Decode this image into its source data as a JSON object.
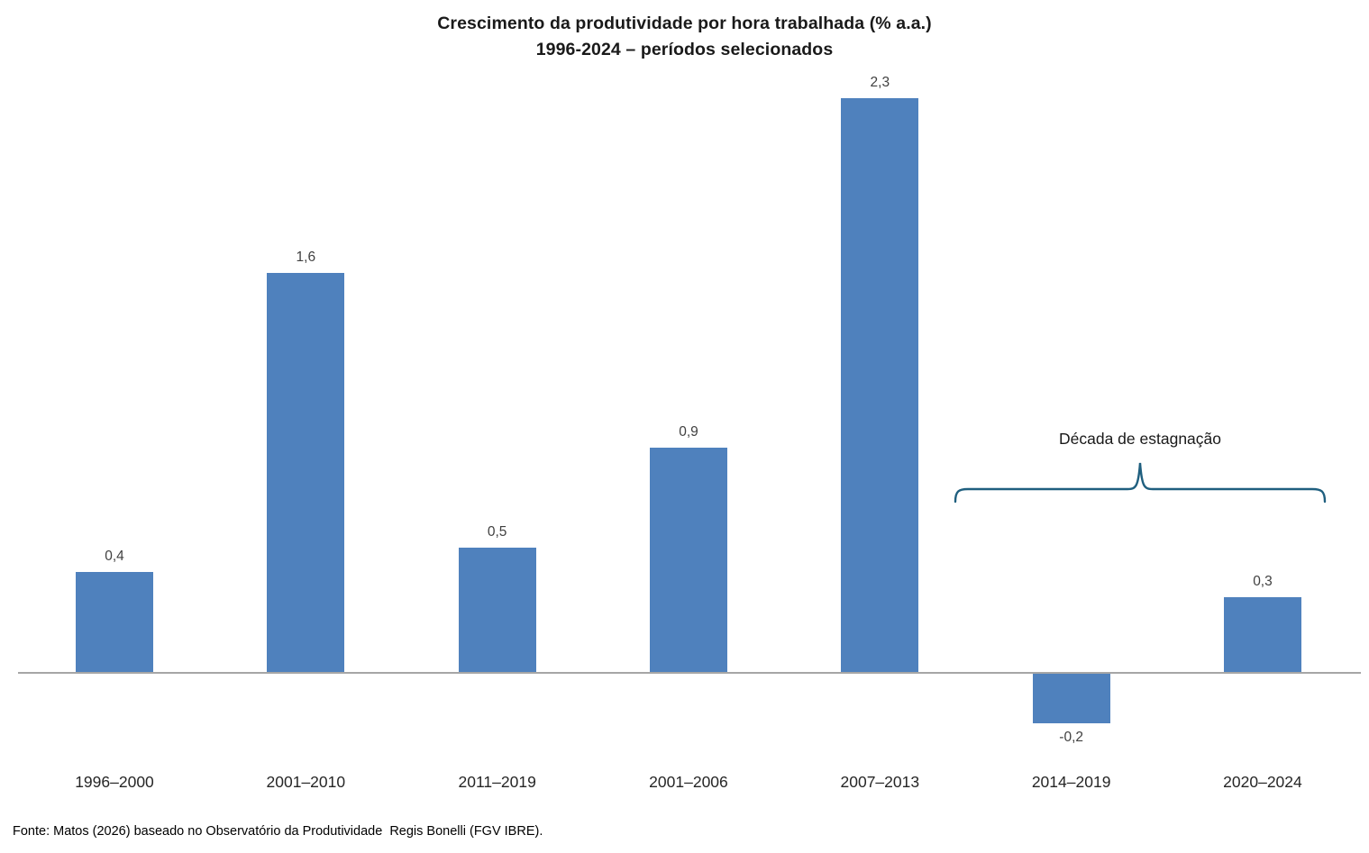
{
  "title": {
    "line1": "Crescimento da produtividade por hora trabalhada (% a.a.)",
    "line2": "1996-2024 – períodos selecionados"
  },
  "annotation": {
    "label": "Década de estagnação",
    "span_categories": [
      "2014–2019",
      "2020–2024"
    ]
  },
  "footer": {
    "source": "Fonte: Matos (2026) baseado no Observatório da Produtividade  Regis Bonelli (FGV IBRE)."
  },
  "chart_data": {
    "type": "bar",
    "title": "Crescimento da produtividade por hora trabalhada (% a.a.) 1996-2024 – períodos selecionados",
    "categories": [
      "1996–2000",
      "2001–2010",
      "2011–2019",
      "2001–2006",
      "2007–2013",
      "2014–2019",
      "2020–2024"
    ],
    "values": [
      0.4,
      1.6,
      0.5,
      0.9,
      2.3,
      -0.2,
      0.3
    ],
    "value_labels": [
      "0,4",
      "1,6",
      "0,5",
      "0,9",
      "2,3",
      "-0,2",
      "0,3"
    ],
    "xlabel": "",
    "ylabel": "",
    "ylim": [
      -0.4,
      2.5
    ],
    "grid": false,
    "legend": false,
    "colors": {
      "bar": "#4f81bd",
      "axis": "#a6a6a6",
      "brace": "#1f5f7f",
      "data_label": "#404040",
      "category_label": "#262626"
    }
  }
}
